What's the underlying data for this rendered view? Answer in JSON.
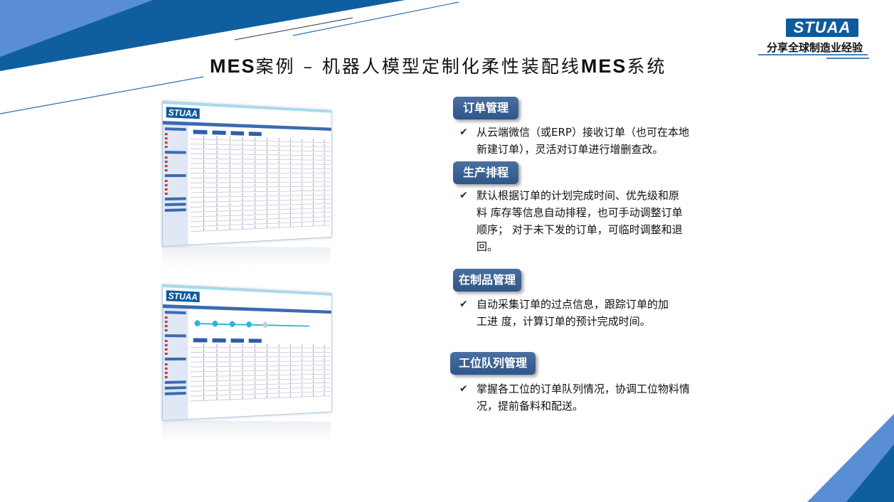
{
  "header": {
    "title_prefix": "MES",
    "title_middle": "案例 – 机器人模型定制化柔性装配线",
    "title_suffix": "MES",
    "title_end": "系统"
  },
  "brand": {
    "logo_text": "STUAA",
    "slogan": "分享全球制造业经验",
    "colors": {
      "primary": "#0f5a9c",
      "light": "#5a8ed4",
      "badge": "#3d6496"
    }
  },
  "screenshots": [
    {
      "logo_text": "STUAA",
      "description_icon": "order-list-screenshot"
    },
    {
      "logo_text": "STUAA",
      "description_icon": "wip-progress-screenshot"
    }
  ],
  "sections": [
    {
      "heading": "订单管理",
      "bullet": "从云端微信（或ERP）接收订单（也可在本地新建订单），灵活对订单进行增删查改。"
    },
    {
      "heading": "生产排程",
      "bullet": "默认根据订单的计划完成时间、优先级和原料 库存等信息自动排程，也可手动调整订单顺序； 对于未下发的订单，可临时调整和退回。"
    },
    {
      "heading": "在制品管理",
      "bullet": "自动采集订单的过点信息，跟踪订单的加工进 度，计算订单的预计完成时间。"
    },
    {
      "heading": "工位队列管理",
      "bullet": "掌握各工位的订单队列情况，协调工位物料情 况，提前备料和配送。"
    }
  ],
  "check_icon": "checkmark-icon"
}
